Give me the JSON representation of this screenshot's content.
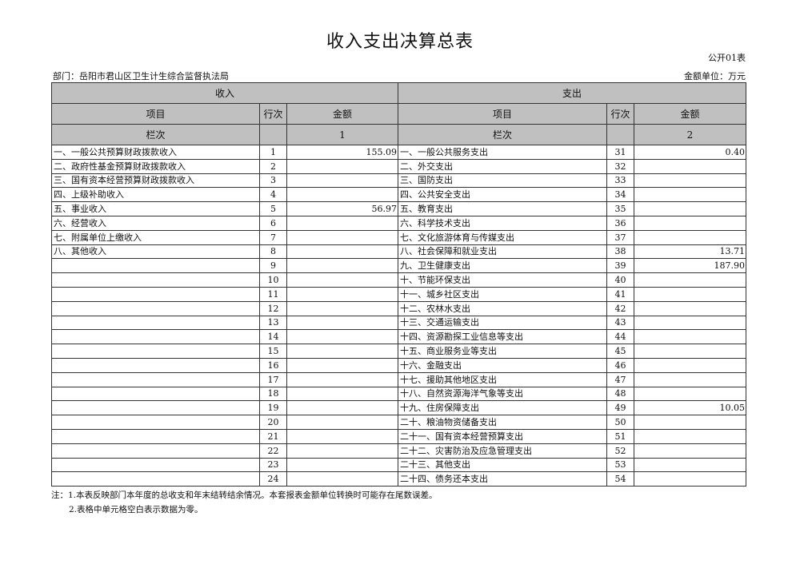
{
  "title": "收入支出决算总表",
  "form_no": "公开01表",
  "department": "部门：岳阳市君山区卫生计生综合监督执法局",
  "unit": "金额单位：万元",
  "header": {
    "income": "收入",
    "expense": "支出",
    "item": "项目",
    "line_no": "行次",
    "amount": "金额",
    "column_no": "栏次",
    "income_col": "1",
    "expense_col": "2"
  },
  "rows": [
    {
      "in_item": "一、一般公共预算财政拨款收入",
      "in_line": "1",
      "in_amt": "155.09",
      "out_item": "一、一般公共服务支出",
      "out_line": "31",
      "out_amt": "0.40"
    },
    {
      "in_item": "二、政府性基金预算财政拨款收入",
      "in_line": "2",
      "in_amt": "",
      "out_item": "二、外交支出",
      "out_line": "32",
      "out_amt": ""
    },
    {
      "in_item": "三、国有资本经营预算财政拨款收入",
      "in_line": "3",
      "in_amt": "",
      "out_item": "三、国防支出",
      "out_line": "33",
      "out_amt": ""
    },
    {
      "in_item": "四、上级补助收入",
      "in_line": "4",
      "in_amt": "",
      "out_item": "四、公共安全支出",
      "out_line": "34",
      "out_amt": ""
    },
    {
      "in_item": "五、事业收入",
      "in_line": "5",
      "in_amt": "56.97",
      "out_item": "五、教育支出",
      "out_line": "35",
      "out_amt": ""
    },
    {
      "in_item": "六、经营收入",
      "in_line": "6",
      "in_amt": "",
      "out_item": "六、科学技术支出",
      "out_line": "36",
      "out_amt": ""
    },
    {
      "in_item": "七、附属单位上缴收入",
      "in_line": "7",
      "in_amt": "",
      "out_item": "七、文化旅游体育与传媒支出",
      "out_line": "37",
      "out_amt": ""
    },
    {
      "in_item": "八、其他收入",
      "in_line": "8",
      "in_amt": "",
      "out_item": "八、社会保障和就业支出",
      "out_line": "38",
      "out_amt": "13.71"
    },
    {
      "in_item": "",
      "in_line": "9",
      "in_amt": "",
      "out_item": "九、卫生健康支出",
      "out_line": "39",
      "out_amt": "187.90"
    },
    {
      "in_item": "",
      "in_line": "10",
      "in_amt": "",
      "out_item": "十、节能环保支出",
      "out_line": "40",
      "out_amt": ""
    },
    {
      "in_item": "",
      "in_line": "11",
      "in_amt": "",
      "out_item": "十一、城乡社区支出",
      "out_line": "41",
      "out_amt": ""
    },
    {
      "in_item": "",
      "in_line": "12",
      "in_amt": "",
      "out_item": "十二、农林水支出",
      "out_line": "42",
      "out_amt": ""
    },
    {
      "in_item": "",
      "in_line": "13",
      "in_amt": "",
      "out_item": "十三、交通运输支出",
      "out_line": "43",
      "out_amt": ""
    },
    {
      "in_item": "",
      "in_line": "14",
      "in_amt": "",
      "out_item": "十四、资源勘探工业信息等支出",
      "out_line": "44",
      "out_amt": ""
    },
    {
      "in_item": "",
      "in_line": "15",
      "in_amt": "",
      "out_item": "十五、商业服务业等支出",
      "out_line": "45",
      "out_amt": ""
    },
    {
      "in_item": "",
      "in_line": "16",
      "in_amt": "",
      "out_item": "十六、金融支出",
      "out_line": "46",
      "out_amt": ""
    },
    {
      "in_item": "",
      "in_line": "17",
      "in_amt": "",
      "out_item": "十七、援助其他地区支出",
      "out_line": "47",
      "out_amt": ""
    },
    {
      "in_item": "",
      "in_line": "18",
      "in_amt": "",
      "out_item": "十八、自然资源海洋气象等支出",
      "out_line": "48",
      "out_amt": ""
    },
    {
      "in_item": "",
      "in_line": "19",
      "in_amt": "",
      "out_item": "十九、住房保障支出",
      "out_line": "49",
      "out_amt": "10.05"
    },
    {
      "in_item": "",
      "in_line": "20",
      "in_amt": "",
      "out_item": "二十、粮油物资储备支出",
      "out_line": "50",
      "out_amt": ""
    },
    {
      "in_item": "",
      "in_line": "21",
      "in_amt": "",
      "out_item": "二十一、国有资本经营预算支出",
      "out_line": "51",
      "out_amt": ""
    },
    {
      "in_item": "",
      "in_line": "22",
      "in_amt": "",
      "out_item": "二十二、灾害防治及应急管理支出",
      "out_line": "52",
      "out_amt": ""
    },
    {
      "in_item": "",
      "in_line": "23",
      "in_amt": "",
      "out_item": "二十三、其他支出",
      "out_line": "53",
      "out_amt": ""
    },
    {
      "in_item": "",
      "in_line": "24",
      "in_amt": "",
      "out_item": "二十四、债务还本支出",
      "out_line": "54",
      "out_amt": ""
    }
  ],
  "notes": [
    "注：1.本表反映部门本年度的总收支和年末结转结余情况。本套报表金额单位转换时可能存在尾数误差。",
    "2.表格中单元格空白表示数据为零。"
  ]
}
